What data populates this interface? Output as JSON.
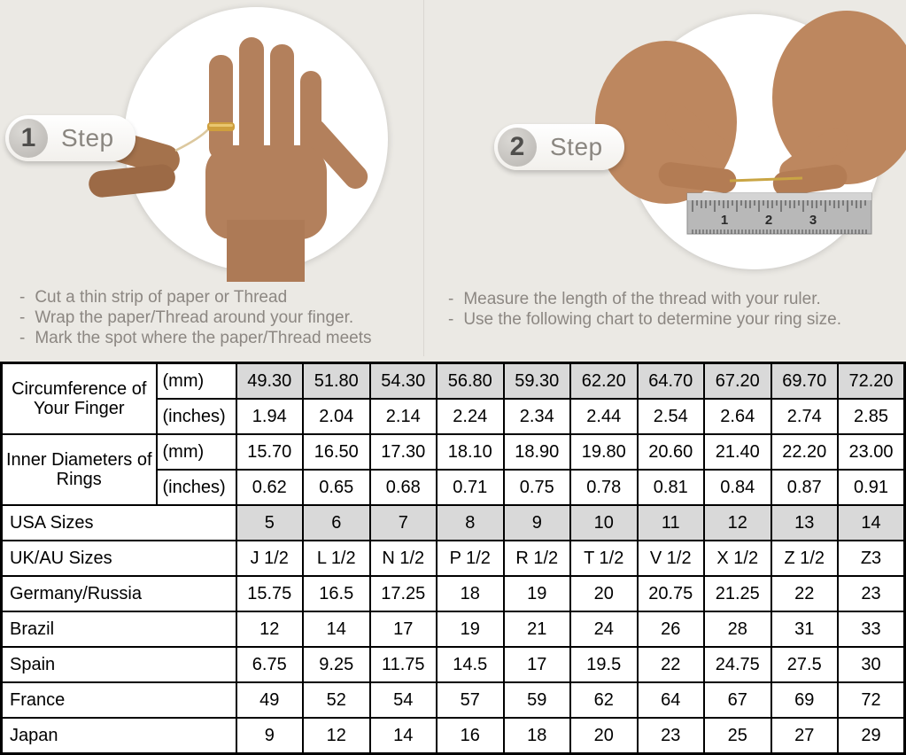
{
  "bullet": "-",
  "steps": [
    {
      "number": "1",
      "label": "Step",
      "instructions": [
        "Cut a thin strip of paper or Thread",
        "Wrap the paper/Thread around your finger.",
        "Mark the spot where the paper/Thread meets"
      ]
    },
    {
      "number": "2",
      "label": "Step",
      "instructions": [
        "Measure the length of the thread with your ruler.",
        "Use the following chart to determine your ring size."
      ]
    }
  ],
  "photos": {
    "step1_alt": "hand with gold ring being measured with thread",
    "step2_alt": "hands holding thread against a ruler",
    "ruler_numbers": [
      "1",
      "2",
      "3"
    ]
  },
  "colors": {
    "top_background": "#ebe9e4",
    "highlight_cell": "#d9d9d9",
    "table_border": "#000000",
    "instruction_text": "#8c8782",
    "gold_ring": "#cf9f3d"
  },
  "chart_data": {
    "type": "table",
    "rows": [
      {
        "label": "Circumference of Your Finger",
        "rowspan": 2,
        "unit": "(mm)",
        "highlight": true,
        "values": [
          "49.30",
          "51.80",
          "54.30",
          "56.80",
          "59.30",
          "62.20",
          "64.70",
          "67.20",
          "69.70",
          "72.20"
        ]
      },
      {
        "unit": "(inches)",
        "values": [
          "1.94",
          "2.04",
          "2.14",
          "2.24",
          "2.34",
          "2.44",
          "2.54",
          "2.64",
          "2.74",
          "2.85"
        ]
      },
      {
        "label": "Inner Diameters of Rings",
        "rowspan": 2,
        "unit": "(mm)",
        "values": [
          "15.70",
          "16.50",
          "17.30",
          "18.10",
          "18.90",
          "19.80",
          "20.60",
          "21.40",
          "22.20",
          "23.00"
        ]
      },
      {
        "unit": "(inches)",
        "values": [
          "0.62",
          "0.65",
          "0.68",
          "0.71",
          "0.75",
          "0.78",
          "0.81",
          "0.84",
          "0.87",
          "0.91"
        ]
      },
      {
        "label": "USA Sizes",
        "colspan": 2,
        "highlight": true,
        "values": [
          "5",
          "6",
          "7",
          "8",
          "9",
          "10",
          "11",
          "12",
          "13",
          "14"
        ]
      },
      {
        "label": "UK/AU Sizes",
        "colspan": 2,
        "values": [
          "J 1/2",
          "L 1/2",
          "N 1/2",
          "P 1/2",
          "R 1/2",
          "T 1/2",
          "V 1/2",
          "X 1/2",
          "Z 1/2",
          "Z3"
        ]
      },
      {
        "label": "Germany/Russia",
        "colspan": 2,
        "values": [
          "15.75",
          "16.5",
          "17.25",
          "18",
          "19",
          "20",
          "20.75",
          "21.25",
          "22",
          "23"
        ]
      },
      {
        "label": "Brazil",
        "colspan": 2,
        "values": [
          "12",
          "14",
          "17",
          "19",
          "21",
          "24",
          "26",
          "28",
          "31",
          "33"
        ]
      },
      {
        "label": "Spain",
        "colspan": 2,
        "values": [
          "6.75",
          "9.25",
          "11.75",
          "14.5",
          "17",
          "19.5",
          "22",
          "24.75",
          "27.5",
          "30"
        ]
      },
      {
        "label": "France",
        "colspan": 2,
        "values": [
          "49",
          "52",
          "54",
          "57",
          "59",
          "62",
          "64",
          "67",
          "69",
          "72"
        ]
      },
      {
        "label": "Japan",
        "colspan": 2,
        "values": [
          "9",
          "12",
          "14",
          "16",
          "18",
          "20",
          "23",
          "25",
          "27",
          "29"
        ]
      }
    ]
  }
}
